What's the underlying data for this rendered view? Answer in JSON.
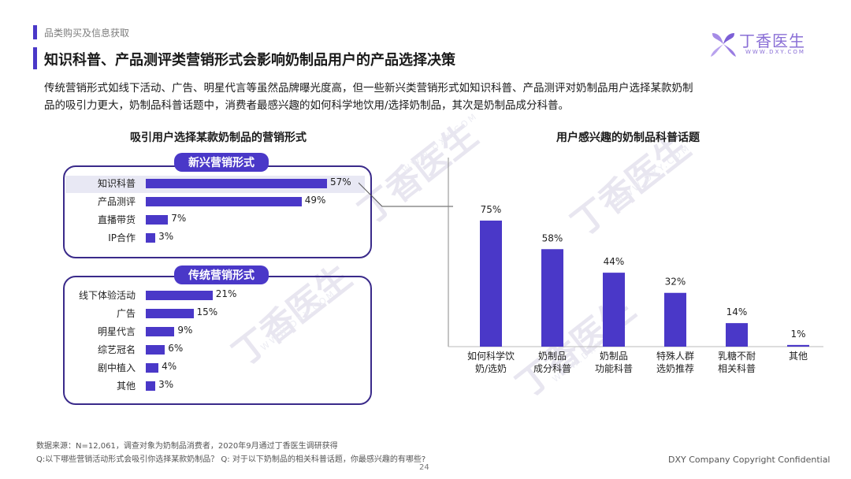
{
  "header": {
    "breadcrumb": "品类购买及信息获取",
    "title": "知识科普、产品测评类营销形式会影响奶制品用户的产品选择决策",
    "logo_text": "丁香医生",
    "logo_sub": "WWW.DXY.COM"
  },
  "summary_lines": [
    "传统营销形式如线下活动、广告、明星代言等虽然品牌曝光度高，但一些新兴类营销形式如知识科普、产品测评对奶制品用户选择某款奶制",
    "品的吸引力更大，奶制品科普话题中，消费者最感兴趣的如何科学地饮用/选择奶制品，其次是奶制品成分科普。"
  ],
  "colors": {
    "accent": "#4a38c8",
    "bar": "#4a38c8",
    "border": "#3a2a8a",
    "highlight": "#e8e8f4"
  },
  "watermark": {
    "text": "丁香医生",
    "sub": "WWW.DXY.COM"
  },
  "chart_data": [
    {
      "type": "bar",
      "orientation": "horizontal",
      "title": "吸引用户选择某款奶制品的营销形式",
      "groups": [
        {
          "name": "新兴营销形式",
          "categories": [
            "知识科普",
            "产品测评",
            "直播带货",
            "IP合作"
          ],
          "values": [
            57,
            49,
            7,
            3
          ],
          "labels": [
            "57%",
            "49%",
            "7%",
            "3%"
          ]
        },
        {
          "name": "传统营销形式",
          "categories": [
            "线下体验活动",
            "广告",
            "明星代言",
            "综艺冠名",
            "剧中植入",
            "其他"
          ],
          "values": [
            21,
            15,
            9,
            6,
            4,
            3
          ],
          "labels": [
            "21%",
            "15%",
            "9%",
            "6%",
            "4%",
            "3%"
          ]
        }
      ],
      "xlim": [
        0,
        57
      ],
      "highlight_category": "知识科普"
    },
    {
      "type": "bar",
      "orientation": "vertical",
      "title": "用户感兴趣的奶制品科普话题",
      "categories": [
        "如何科学饮\n奶/选奶",
        "奶制品\n成分科普",
        "奶制品\n功能科普",
        "特殊人群\n选奶推荐",
        "乳糖不耐\n相关科普",
        "其他"
      ],
      "values": [
        75,
        58,
        44,
        32,
        14,
        1
      ],
      "labels": [
        "75%",
        "58%",
        "44%",
        "32%",
        "14%",
        "1%"
      ],
      "ylim": [
        0,
        75
      ]
    }
  ],
  "footer": {
    "source": "数据来源：N=12,061，调查对象为奶制品消费者，2020年9月通过丁香医生调研获得",
    "question": "Q:以下哪些营销活动形式会吸引你选择某款奶制品？ Q: 对于以下奶制品的相关科普话题，你最感兴趣的有哪些?",
    "copyright": "DXY Company Copyright Confidential",
    "page_number": "24"
  }
}
